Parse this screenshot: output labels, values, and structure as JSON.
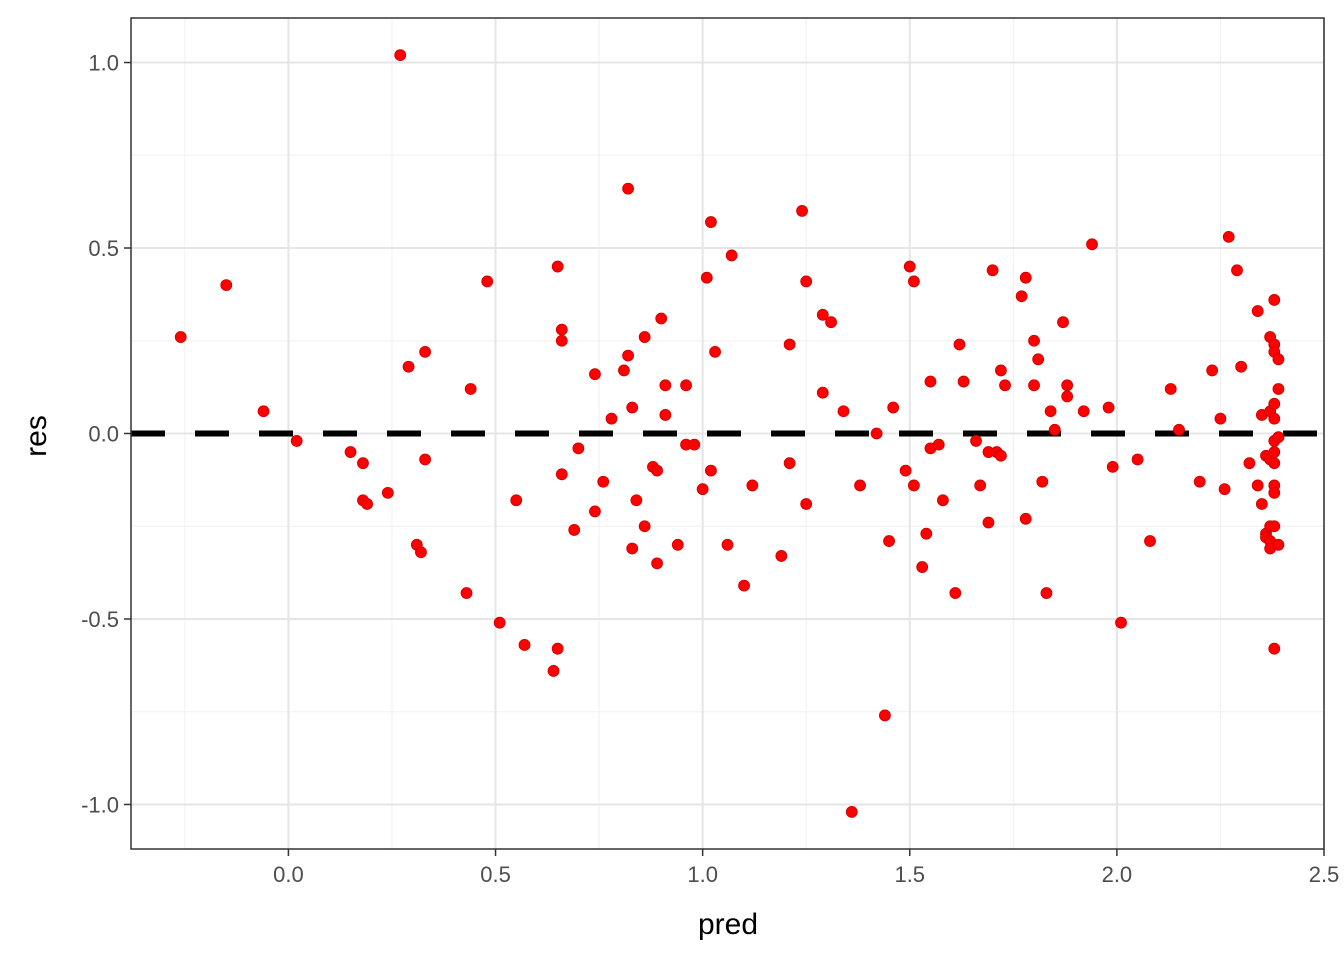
{
  "chart_data": {
    "type": "scatter",
    "title": "",
    "xlabel": "pred",
    "ylabel": "res",
    "xlim": [
      -0.38,
      2.5
    ],
    "ylim": [
      -1.12,
      1.12
    ],
    "x_ticks": [
      0.0,
      0.5,
      1.0,
      1.5,
      2.0,
      2.5
    ],
    "x_tick_labels": [
      "0.0",
      "0.5",
      "1.0",
      "1.5",
      "2.0",
      "2.5"
    ],
    "y_ticks": [
      -1.0,
      -0.5,
      0.0,
      0.5,
      1.0
    ],
    "y_tick_labels": [
      "-1.0",
      "-0.5",
      "0.0",
      "0.5",
      "1.0"
    ],
    "grid": true,
    "theme": "bw",
    "point_color": "#ff0000",
    "reference_line": {
      "y": 0,
      "style": "dashed",
      "color": "#000000"
    },
    "points": [
      [
        -0.26,
        0.26
      ],
      [
        -0.15,
        0.4
      ],
      [
        -0.06,
        0.06
      ],
      [
        0.02,
        -0.02
      ],
      [
        0.15,
        -0.05
      ],
      [
        0.18,
        -0.08
      ],
      [
        0.18,
        -0.18
      ],
      [
        0.19,
        -0.19
      ],
      [
        0.24,
        -0.16
      ],
      [
        0.27,
        1.02
      ],
      [
        0.29,
        0.18
      ],
      [
        0.31,
        -0.3
      ],
      [
        0.32,
        -0.32
      ],
      [
        0.33,
        0.22
      ],
      [
        0.33,
        -0.07
      ],
      [
        0.44,
        0.12
      ],
      [
        0.43,
        -0.43
      ],
      [
        0.48,
        0.41
      ],
      [
        0.51,
        -0.51
      ],
      [
        0.55,
        -0.18
      ],
      [
        0.57,
        -0.57
      ],
      [
        0.64,
        -0.64
      ],
      [
        0.65,
        0.45
      ],
      [
        0.66,
        0.28
      ],
      [
        0.66,
        0.25
      ],
      [
        0.66,
        -0.11
      ],
      [
        0.65,
        -0.58
      ],
      [
        0.69,
        -0.26
      ],
      [
        0.7,
        -0.04
      ],
      [
        0.74,
        0.16
      ],
      [
        0.74,
        -0.21
      ],
      [
        0.76,
        -0.13
      ],
      [
        0.78,
        0.04
      ],
      [
        0.81,
        0.17
      ],
      [
        0.82,
        0.21
      ],
      [
        0.82,
        0.66
      ],
      [
        0.83,
        0.07
      ],
      [
        0.84,
        -0.18
      ],
      [
        0.83,
        -0.31
      ],
      [
        0.86,
        0.26
      ],
      [
        0.86,
        -0.25
      ],
      [
        0.88,
        -0.09
      ],
      [
        0.89,
        -0.1
      ],
      [
        0.89,
        -0.35
      ],
      [
        0.9,
        0.31
      ],
      [
        0.91,
        0.13
      ],
      [
        0.91,
        0.05
      ],
      [
        0.94,
        -0.3
      ],
      [
        0.96,
        0.13
      ],
      [
        0.96,
        -0.03
      ],
      [
        0.98,
        -0.03
      ],
      [
        1.0,
        -0.15
      ],
      [
        1.01,
        0.42
      ],
      [
        1.02,
        0.57
      ],
      [
        1.02,
        -0.1
      ],
      [
        1.03,
        0.22
      ],
      [
        1.06,
        -0.3
      ],
      [
        1.07,
        0.48
      ],
      [
        1.1,
        -0.41
      ],
      [
        1.12,
        -0.14
      ],
      [
        1.19,
        -0.33
      ],
      [
        1.21,
        0.24
      ],
      [
        1.21,
        -0.08
      ],
      [
        1.24,
        0.6
      ],
      [
        1.25,
        0.41
      ],
      [
        1.25,
        -0.19
      ],
      [
        1.29,
        0.32
      ],
      [
        1.29,
        0.11
      ],
      [
        1.31,
        0.3
      ],
      [
        1.34,
        0.06
      ],
      [
        1.36,
        -1.02
      ],
      [
        1.38,
        -0.14
      ],
      [
        1.42,
        0.0
      ],
      [
        1.44,
        -0.76
      ],
      [
        1.45,
        -0.29
      ],
      [
        1.46,
        0.07
      ],
      [
        1.49,
        -0.1
      ],
      [
        1.5,
        0.45
      ],
      [
        1.51,
        0.41
      ],
      [
        1.51,
        -0.14
      ],
      [
        1.53,
        -0.36
      ],
      [
        1.54,
        -0.27
      ],
      [
        1.55,
        0.14
      ],
      [
        1.55,
        -0.04
      ],
      [
        1.57,
        -0.03
      ],
      [
        1.58,
        -0.18
      ],
      [
        1.61,
        -0.43
      ],
      [
        1.62,
        0.24
      ],
      [
        1.63,
        0.14
      ],
      [
        1.66,
        -0.02
      ],
      [
        1.67,
        -0.14
      ],
      [
        1.69,
        -0.24
      ],
      [
        1.69,
        -0.05
      ],
      [
        1.7,
        0.44
      ],
      [
        1.71,
        -0.05
      ],
      [
        1.72,
        0.17
      ],
      [
        1.72,
        -0.06
      ],
      [
        1.73,
        0.13
      ],
      [
        1.77,
        0.37
      ],
      [
        1.78,
        0.42
      ],
      [
        1.78,
        -0.23
      ],
      [
        1.8,
        0.13
      ],
      [
        1.8,
        0.25
      ],
      [
        1.81,
        0.2
      ],
      [
        1.82,
        -0.13
      ],
      [
        1.83,
        -0.43
      ],
      [
        1.84,
        0.06
      ],
      [
        1.85,
        0.01
      ],
      [
        1.87,
        0.3
      ],
      [
        1.88,
        0.13
      ],
      [
        1.88,
        0.1
      ],
      [
        1.92,
        0.06
      ],
      [
        1.94,
        0.51
      ],
      [
        1.98,
        0.07
      ],
      [
        1.99,
        -0.09
      ],
      [
        2.01,
        -0.51
      ],
      [
        2.05,
        -0.07
      ],
      [
        2.08,
        -0.29
      ],
      [
        2.13,
        0.12
      ],
      [
        2.15,
        0.01
      ],
      [
        2.2,
        -0.13
      ],
      [
        2.23,
        0.17
      ],
      [
        2.25,
        0.04
      ],
      [
        2.26,
        -0.15
      ],
      [
        2.27,
        0.53
      ],
      [
        2.29,
        0.44
      ],
      [
        2.3,
        0.18
      ],
      [
        2.32,
        -0.08
      ],
      [
        2.34,
        0.33
      ],
      [
        2.34,
        -0.14
      ],
      [
        2.35,
        0.05
      ],
      [
        2.35,
        -0.19
      ],
      [
        2.36,
        -0.06
      ],
      [
        2.36,
        -0.27
      ],
      [
        2.36,
        -0.28
      ],
      [
        2.37,
        0.06
      ],
      [
        2.37,
        -0.07
      ],
      [
        2.37,
        -0.25
      ],
      [
        2.37,
        -0.29
      ],
      [
        2.37,
        -0.31
      ],
      [
        2.37,
        0.26
      ],
      [
        2.38,
        0.36
      ],
      [
        2.38,
        0.24
      ],
      [
        2.38,
        0.22
      ],
      [
        2.38,
        0.08
      ],
      [
        2.38,
        0.04
      ],
      [
        2.38,
        -0.02
      ],
      [
        2.38,
        -0.05
      ],
      [
        2.38,
        -0.08
      ],
      [
        2.38,
        -0.14
      ],
      [
        2.38,
        -0.16
      ],
      [
        2.38,
        -0.25
      ],
      [
        2.38,
        -0.58
      ],
      [
        2.39,
        0.2
      ],
      [
        2.39,
        0.12
      ],
      [
        2.39,
        -0.01
      ],
      [
        2.39,
        -0.3
      ]
    ]
  }
}
